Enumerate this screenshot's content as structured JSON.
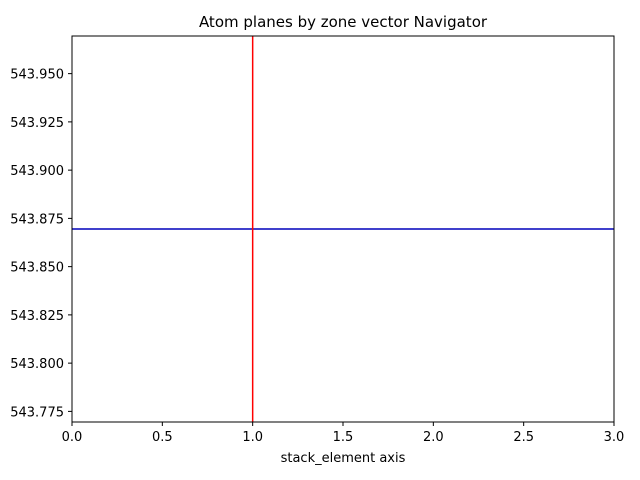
{
  "chart_data": {
    "type": "line",
    "title": "Atom planes by zone vector Navigator",
    "xlabel": "stack_element axis",
    "ylabel": "",
    "xlim": [
      0.0,
      3.0
    ],
    "ylim": [
      543.7695,
      543.9695
    ],
    "x_ticks": [
      0.0,
      0.5,
      1.0,
      1.5,
      2.0,
      2.5,
      3.0
    ],
    "x_tick_labels": [
      "0.0",
      "0.5",
      "1.0",
      "1.5",
      "2.0",
      "2.5",
      "3.0"
    ],
    "y_ticks": [
      543.775,
      543.8,
      543.825,
      543.85,
      543.875,
      543.9,
      543.925,
      543.95
    ],
    "y_tick_labels": [
      "543.775",
      "543.800",
      "543.825",
      "543.850",
      "543.875",
      "543.900",
      "543.925",
      "543.950"
    ],
    "grid": false,
    "series": [
      {
        "orientation": "horizontal",
        "y": 543.8695,
        "color": "#0000bb"
      },
      {
        "orientation": "vertical",
        "x": 1.0,
        "color": "#ff0000"
      }
    ]
  }
}
